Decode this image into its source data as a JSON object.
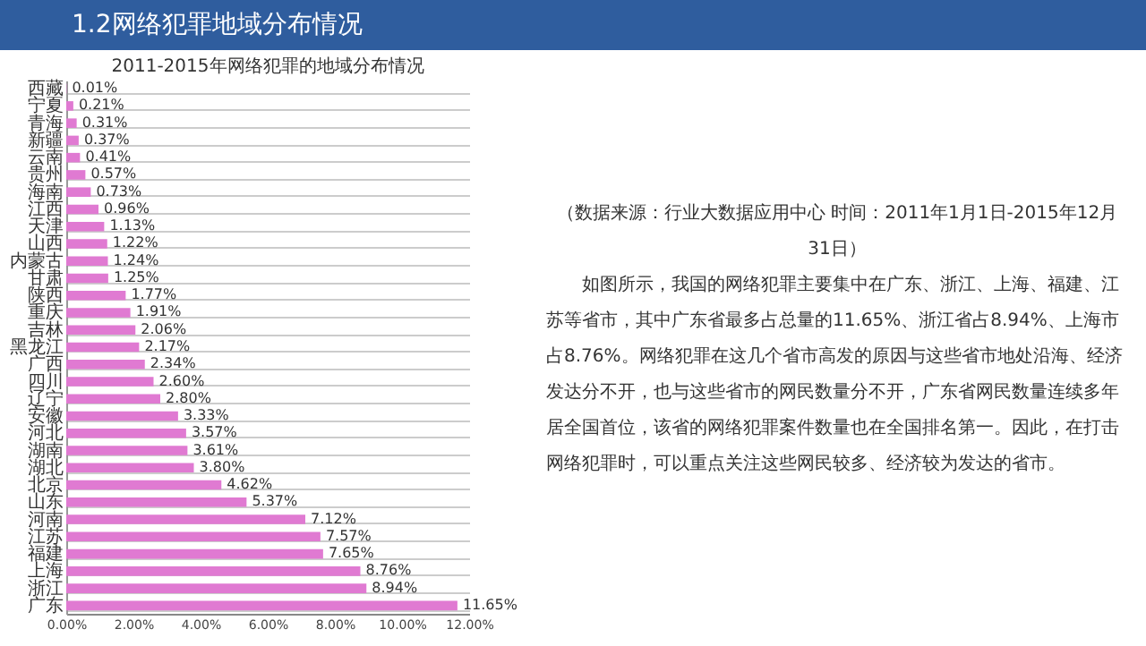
{
  "chart_data": {
    "type": "bar",
    "orientation": "horizontal",
    "title": "1.2网络犯罪地域分布情况",
    "subtitle": "2011-2015年网络犯罪的地域分布情况",
    "categories": [
      "西藏",
      "宁夏",
      "青海",
      "新疆",
      "云南",
      "贵州",
      "海南",
      "江西",
      "天津",
      "山西",
      "内蒙古",
      "甘肃",
      "陕西",
      "重庆",
      "吉林",
      "黑龙江",
      "广西",
      "四川",
      "辽宁",
      "安徽",
      "河北",
      "湖南",
      "湖北",
      "北京",
      "山东",
      "河南",
      "江苏",
      "福建",
      "上海",
      "浙江",
      "广东"
    ],
    "values": [
      0.01,
      0.21,
      0.31,
      0.37,
      0.41,
      0.57,
      0.73,
      0.96,
      1.13,
      1.22,
      1.24,
      1.25,
      1.77,
      1.91,
      2.06,
      2.17,
      2.34,
      2.6,
      2.8,
      3.33,
      3.57,
      3.61,
      3.8,
      4.62,
      5.37,
      7.12,
      7.57,
      7.65,
      8.76,
      8.94,
      11.65
    ],
    "value_labels": [
      "0.01%",
      "0.21%",
      "0.31%",
      "0.37%",
      "0.41%",
      "0.57%",
      "0.73%",
      "0.96%",
      "1.13%",
      "1.22%",
      "1.24%",
      "1.25%",
      "1.77%",
      "1.91%",
      "2.06%",
      "2.17%",
      "2.34%",
      "2.60%",
      "2.80%",
      "3.33%",
      "3.57%",
      "3.61%",
      "3.80%",
      "4.62%",
      "5.37%",
      "7.12%",
      "7.57%",
      "7.65%",
      "8.76%",
      "8.94%",
      "11.65%"
    ],
    "color": "#e07ad2",
    "xlim": [
      0,
      12
    ],
    "xticks": [
      {
        "value": 0,
        "label": "0.00%"
      },
      {
        "value": 2,
        "label": "2.00%"
      },
      {
        "value": 4,
        "label": "4.00%"
      },
      {
        "value": 6,
        "label": "6.00%"
      },
      {
        "value": 8,
        "label": "8.00%"
      },
      {
        "value": 10,
        "label": "10.00%"
      },
      {
        "value": 12,
        "label": "12.00%"
      }
    ],
    "grid": "y",
    "annotations": [
      "（数据来源：行业大数据应用中心 时间：2011年1月1日-2015年12月31日）",
      "如图所示，我国的网络犯罪主要集中在广东、浙江、上海、福建、江苏等省市，其中广东省最多占总量的11.65%、浙江省占8.94%、上海市占8.76%。网络犯罪在这几个省市高发的原因与这些省市地处沿海、经济发达分不开，也与这些省市的网民数量分不开，广东省网民数量连续多年居全国首位，该省的网络犯罪案件数量也在全国排名第一。因此，在打击网络犯罪时，可以重点关注这些网民较多、经济较为发达的省市。"
    ]
  }
}
